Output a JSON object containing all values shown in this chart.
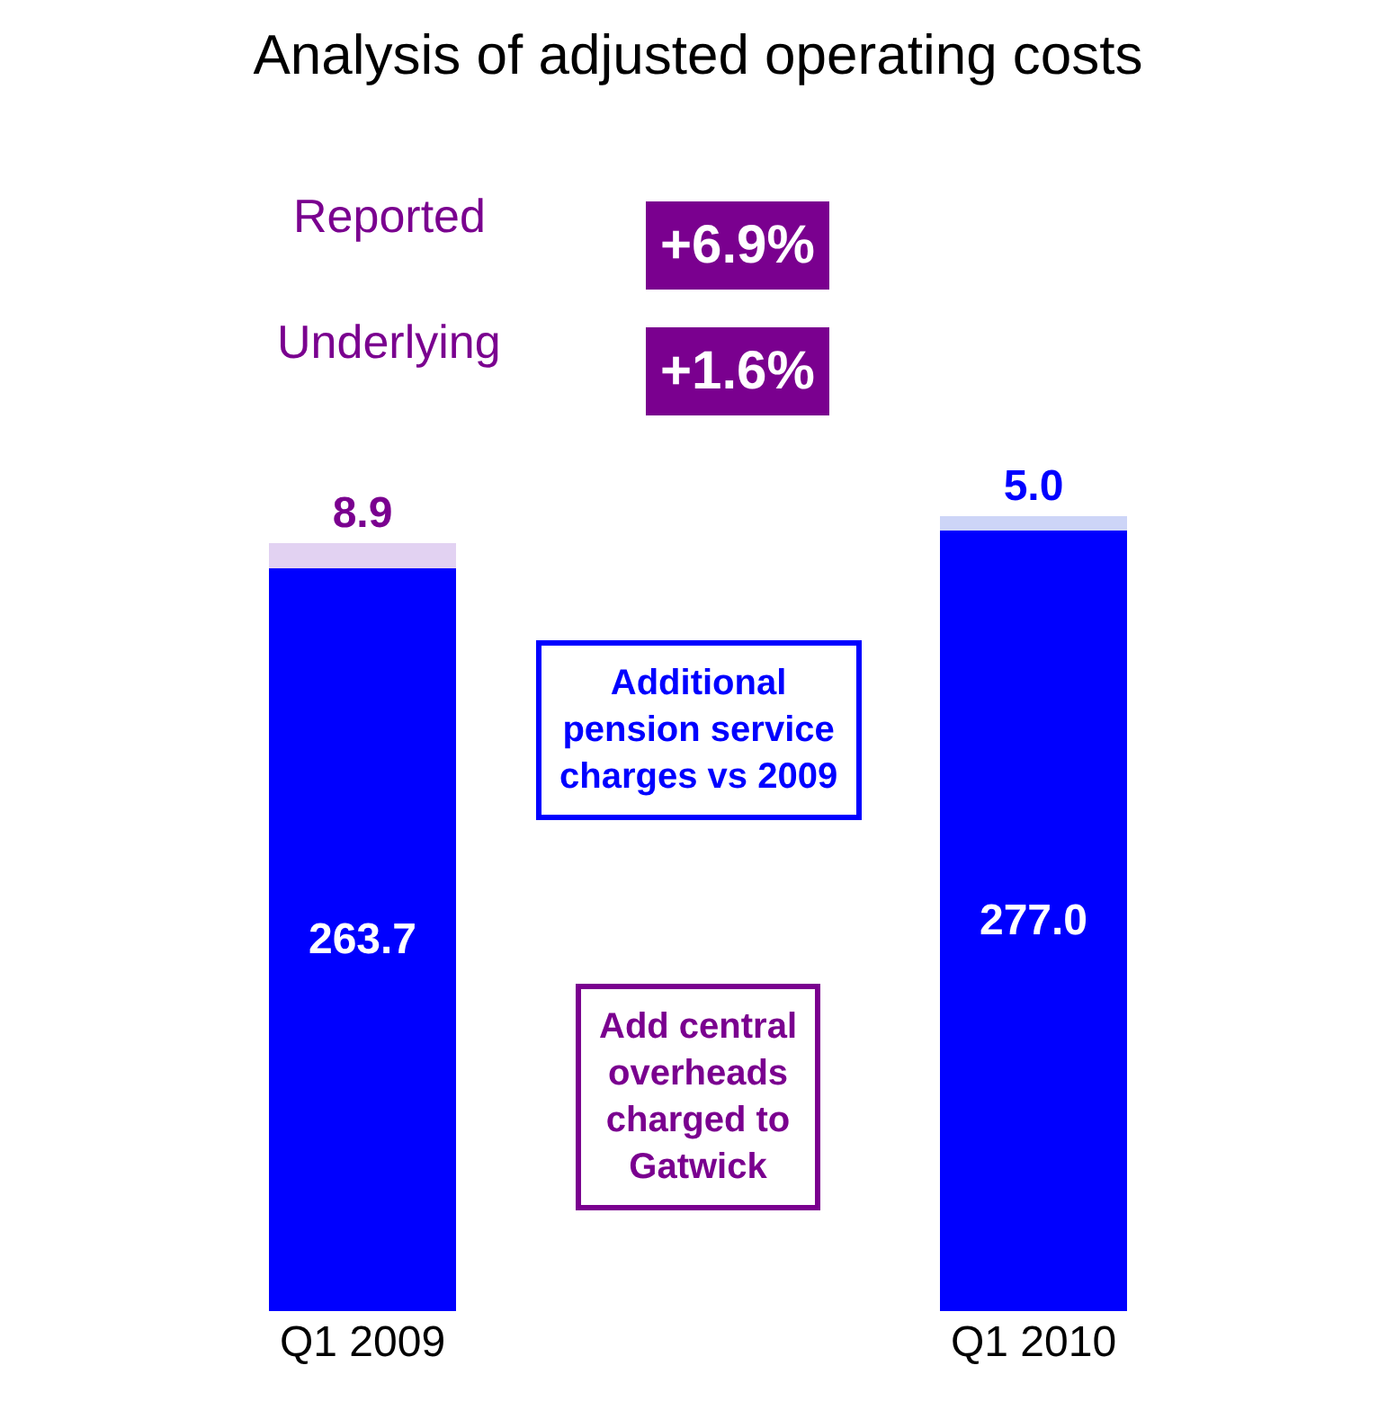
{
  "chart_data": {
    "type": "bar",
    "title": "Analysis of adjusted operating costs",
    "categories": [
      "Q1 2009",
      "Q1 2010"
    ],
    "stacked": true,
    "grid": false,
    "series": [
      {
        "color": "#0000ff",
        "values": [
          263.7,
          277.0
        ],
        "value_labels": [
          "263.7",
          "277.0"
        ]
      },
      {
        "colors": [
          "#e2d2f2",
          "#cdd5f7"
        ],
        "values": [
          8.9,
          5.0
        ],
        "value_labels": [
          "8.9",
          "5.0"
        ]
      }
    ],
    "annotations": [
      "Reported",
      "+6.9%",
      "Underlying",
      "+1.6%",
      "Add central overheads charged to Gatwick",
      "Additional pension service charges vs 2009"
    ]
  }
}
